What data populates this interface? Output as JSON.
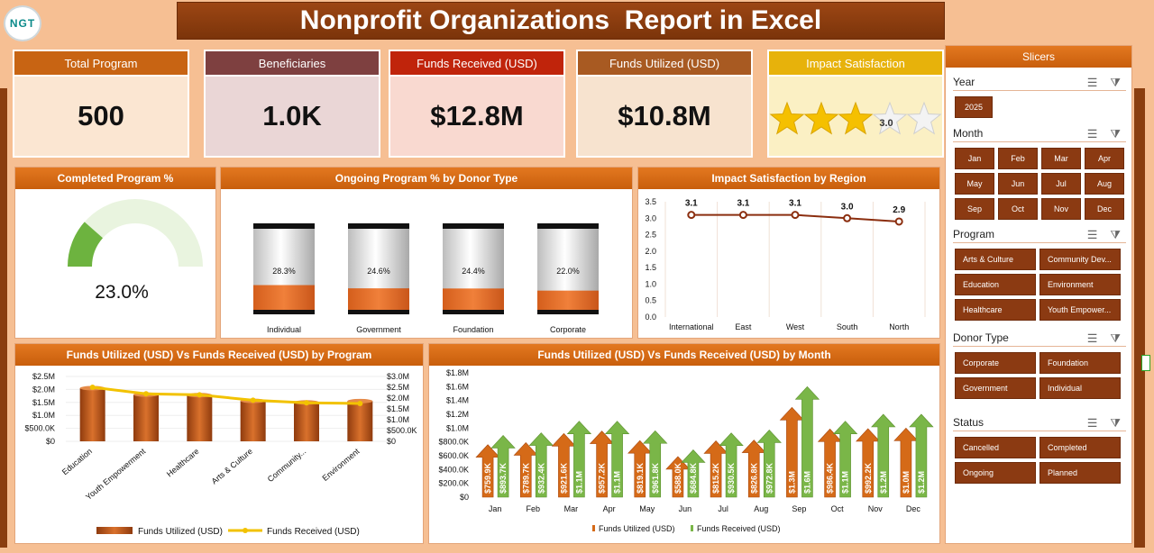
{
  "header": {
    "logo_text": "NGT",
    "title": "Nonprofit Organizations  Report in Excel"
  },
  "kpis": [
    {
      "label": "Total Program",
      "value": "500",
      "head_color": "#c86413",
      "body_color": "#fbe6d2"
    },
    {
      "label": "Beneficiaries",
      "value": "1.0K",
      "head_color": "#7e4040",
      "body_color": "#ead6d6"
    },
    {
      "label": "Funds Received (USD)",
      "value": "$12.8M",
      "head_color": "#c0240b",
      "body_color": "#f9d9d0"
    },
    {
      "label": "Funds Utilized (USD)",
      "value": "$10.8M",
      "head_color": "#a85a22",
      "body_color": "#f7e3cf"
    },
    {
      "label": "Impact Satisfaction",
      "value": "3.0",
      "head_color": "#e7b20b",
      "body_color": "#fbf0c4",
      "stars": 3,
      "max_stars": 5
    }
  ],
  "panels": {
    "completed": {
      "title": "Completed Program %",
      "value": "23.0%",
      "percent": 23.0
    },
    "ongoing": {
      "title": "Ongoing Program % by Donor Type"
    },
    "impact_region": {
      "title": "Impact Satisfaction by Region"
    },
    "by_program": {
      "title": "Funds Utilized (USD) Vs Funds Received (USD) by Program"
    },
    "by_month": {
      "title": "Funds Utilized (USD) Vs Funds Received (USD) by Month"
    }
  },
  "chart_data": [
    {
      "type": "bar",
      "title": "Ongoing Program % by Donor Type",
      "categories": [
        "Individual",
        "Government",
        "Foundation",
        "Corporate"
      ],
      "values": [
        28.3,
        24.6,
        24.4,
        22.0
      ],
      "data_labels": [
        "28.3%",
        "24.6%",
        "24.4%",
        "22.0%"
      ]
    },
    {
      "type": "line",
      "title": "Impact Satisfaction by Region",
      "categories": [
        "International",
        "East",
        "West",
        "South",
        "North"
      ],
      "values": [
        3.1,
        3.1,
        3.1,
        3.0,
        2.9
      ],
      "data_labels": [
        "3.1",
        "3.1",
        "3.1",
        "3.0",
        "2.9"
      ],
      "y_ticks": [
        "0.0",
        "0.5",
        "1.0",
        "1.5",
        "2.0",
        "2.5",
        "3.0",
        "3.5"
      ],
      "ylim": [
        0,
        3.5
      ]
    },
    {
      "type": "bar",
      "title": "Funds Utilized (USD) Vs Funds Received (USD) by Program",
      "categories": [
        "Education",
        "Youth Empowerment",
        "Healthcare",
        "Arts & Culture",
        "Community...",
        "Environment"
      ],
      "series": [
        {
          "name": "Funds Utilized (USD)",
          "values": [
            2.05,
            1.8,
            1.78,
            1.56,
            1.5,
            1.55
          ]
        },
        {
          "name": "Funds Received (USD)",
          "values": [
            2.5,
            2.2,
            2.15,
            1.9,
            1.78,
            1.75
          ]
        }
      ],
      "y_ticks_left": [
        "$0",
        "$500.0K",
        "$1.0M",
        "$1.5M",
        "$2.0M",
        "$2.5M"
      ],
      "y_ticks_right": [
        "$0",
        "$500.0K",
        "$1.0M",
        "$1.5M",
        "$2.0M",
        "$2.5M",
        "$3.0M"
      ],
      "ylim_left": [
        0,
        2.5
      ],
      "ylim_right": [
        0,
        3.0
      ],
      "legend": "bottom"
    },
    {
      "type": "bar",
      "title": "Funds Utilized (USD) Vs Funds Received (USD) by Month",
      "categories": [
        "Jan",
        "Feb",
        "Mar",
        "Apr",
        "May",
        "Jun",
        "Jul",
        "Aug",
        "Sep",
        "Oct",
        "Nov",
        "Dec"
      ],
      "series": [
        {
          "name": "Funds Utilized (USD)",
          "values": [
            759.9,
            789.7,
            921.6,
            957.2,
            819.1,
            588.0,
            815.2,
            826.8,
            1300,
            986.4,
            992.2,
            1000
          ],
          "labels": [
            "$759.9K",
            "$789.7K",
            "$921.6K",
            "$957.2K",
            "$819.1K",
            "$588.0K",
            "$815.2K",
            "$826.8K",
            "$1.3M",
            "$986.4K",
            "$992.2K",
            "$1.0M"
          ]
        },
        {
          "name": "Funds Received (USD)",
          "values": [
            893.7,
            932.4,
            1100,
            1100,
            961.8,
            684.8,
            930.5,
            972.8,
            1600,
            1100,
            1200,
            1200
          ],
          "labels": [
            "$893.7K",
            "$932.4K",
            "$1.1M",
            "$1.1M",
            "$961.8K",
            "$684.8K",
            "$930.5K",
            "$972.8K",
            "$1.6M",
            "$1.1M",
            "$1.2M",
            "$1.2M"
          ]
        }
      ],
      "y_ticks": [
        "$0",
        "$200.0K",
        "$400.0K",
        "$600.0K",
        "$800.0K",
        "$1.0M",
        "$1.2M",
        "$1.4M",
        "$1.6M",
        "$1.8M"
      ],
      "ylim": [
        0,
        1800
      ],
      "legend": "bottom"
    }
  ],
  "slicer": {
    "title": "Slicers",
    "groups": [
      {
        "label": "Year",
        "items": [
          "2025"
        ]
      },
      {
        "label": "Month",
        "items": [
          "Jan",
          "Feb",
          "Mar",
          "Apr",
          "May",
          "Jun",
          "Jul",
          "Aug",
          "Sep",
          "Oct",
          "Nov",
          "Dec"
        ]
      },
      {
        "label": "Program",
        "items": [
          "Arts & Culture",
          "Community Dev...",
          "Education",
          "Environment",
          "Healthcare",
          "Youth Empower..."
        ]
      },
      {
        "label": "Donor Type",
        "items": [
          "Corporate",
          "Foundation",
          "Government",
          "Individual"
        ]
      },
      {
        "label": "Status",
        "items": [
          "Cancelled",
          "Completed",
          "Ongoing",
          "Planned"
        ]
      }
    ]
  },
  "colors": {
    "orange": "#d56a18",
    "orange_dark": "#a8460c",
    "green": "#7ab648",
    "green_dark": "#5b8f2c",
    "line_brown": "#8b2e0f",
    "line_yellow": "#f2c200"
  },
  "icons": [
    "multiselect-icon",
    "clear-filter-icon",
    "star-icon"
  ]
}
